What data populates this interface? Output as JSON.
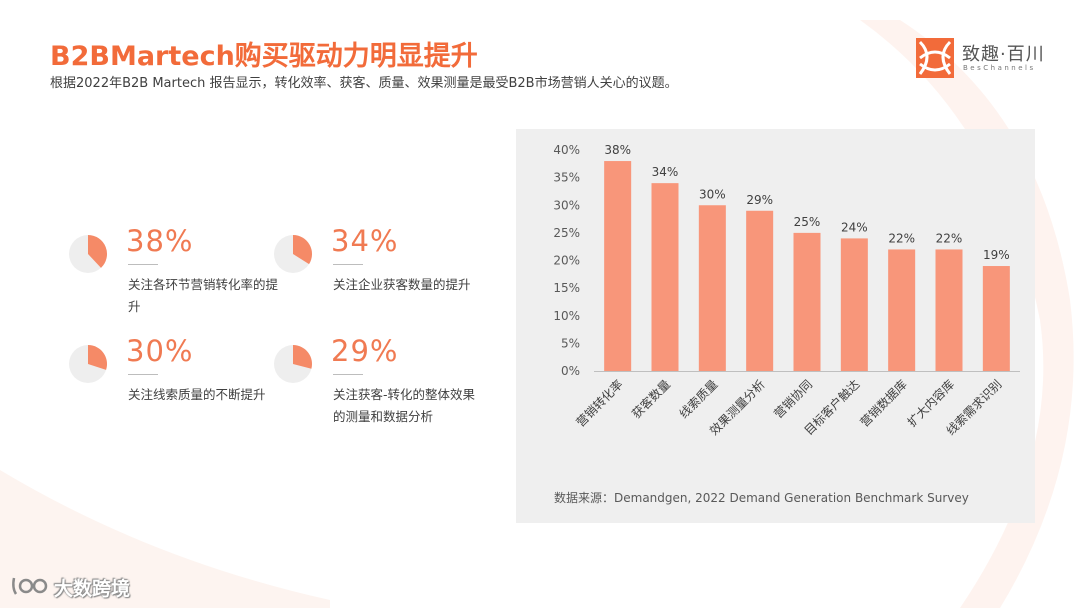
{
  "header": {
    "title": "B2BMartech购买驱动力明显提升",
    "subtitle": "根据2022年B2B Martech 报告显示，转化效率、获客、质量、效果测量是最受B2B市场营销人关心的议题。"
  },
  "logo": {
    "name_cn": "致趣·百川",
    "name_en": "BesChannels"
  },
  "colors": {
    "accent": "#f26b3a",
    "bar": "#f8967a",
    "pie_fill": "#f58a67",
    "pie_bg": "#eeeeee",
    "panel_bg": "#efefef"
  },
  "stats": [
    {
      "value": "38%",
      "fraction": 0.38,
      "desc": "关注各环节营销转化率的提升"
    },
    {
      "value": "34%",
      "fraction": 0.34,
      "desc": "关注企业获客数量的提升"
    },
    {
      "value": "30%",
      "fraction": 0.3,
      "desc": "关注线索质量的不断提升"
    },
    {
      "value": "29%",
      "fraction": 0.29,
      "desc": "关注获客-转化的整体效果的测量和数据分析"
    }
  ],
  "chart_data": {
    "type": "bar",
    "categories": [
      "营销转化率",
      "获客数量",
      "线索质量",
      "效果测量分析",
      "营销协同",
      "目标客户触达",
      "营销数据库",
      "扩大内容库",
      "线索需求识别"
    ],
    "values": [
      38,
      34,
      30,
      29,
      25,
      24,
      22,
      22,
      19
    ],
    "value_labels": [
      "38%",
      "34%",
      "30%",
      "29%",
      "25%",
      "24%",
      "22%",
      "22%",
      "19%"
    ],
    "yticks": [
      "0%",
      "5%",
      "10%",
      "15%",
      "20%",
      "25%",
      "30%",
      "35%",
      "40%"
    ],
    "ylim": [
      0,
      40
    ],
    "grid": false,
    "source": "数据来源：Demandgen, 2022 Demand Generation Benchmark Survey"
  },
  "watermark": {
    "text": "大数跨境"
  }
}
